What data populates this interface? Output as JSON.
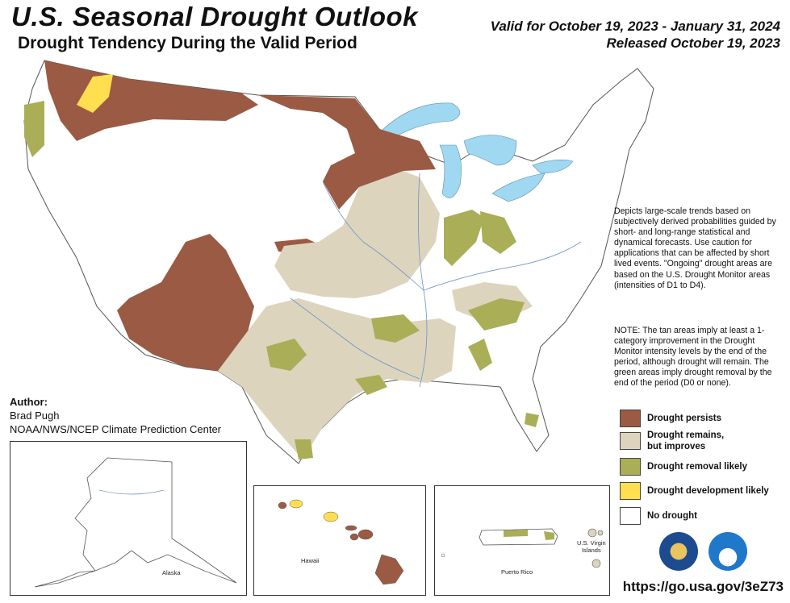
{
  "header": {
    "title": "U.S. Seasonal Drought Outlook",
    "subtitle": "Drought Tendency During the Valid Period",
    "valid_line": "Valid for October 19, 2023 - January 31, 2024",
    "released_line": "Released October 19, 2023"
  },
  "description": "Depicts large-scale trends based on subjectively derived probabilities guided by short- and long-range statistical and dynamical forecasts. Use caution for applications that can be affected by short lived events. \"Ongoing\" drought areas are based on the U.S. Drought Monitor areas (intensities of D1 to D4).",
  "note": "NOTE: The tan areas imply at least a 1-category improvement in the Drought Monitor intensity levels by the end of the period, although drought will remain. The green areas imply drought removal by the end of the period (D0 or none).",
  "legend": [
    {
      "label": "Drought persists",
      "color": "#9b5a43"
    },
    {
      "label": "Drought remains,\nbut improves",
      "color": "#ddd4be"
    },
    {
      "label": "Drought removal likely",
      "color": "#aaae57"
    },
    {
      "label": "Drought development likely",
      "color": "#ffdf4f"
    },
    {
      "label": "No drought",
      "color": "#ffffff"
    }
  ],
  "author": {
    "heading": "Author:",
    "name": "Brad Pugh",
    "org": "NOAA/NWS/NCEP Climate Prediction Center"
  },
  "insets": {
    "alaska": "Alaska",
    "hawaii": "Hawaii",
    "puerto_rico": "Puerto Rico",
    "usvi": "U.S. Virgin\nIslands"
  },
  "logos": {
    "left": "doc-seal-icon",
    "right": "noaa-logo-icon"
  },
  "url": "https://go.usa.gov/3eZ73",
  "colors": {
    "water": "#9fd8f0",
    "persist": "#9b5a43",
    "improve": "#ddd4be",
    "removal": "#aaae57",
    "develop": "#ffdf4f"
  }
}
